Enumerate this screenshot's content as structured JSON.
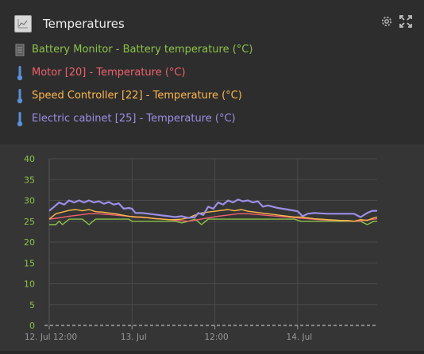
{
  "widget": {
    "title": "Temperatures",
    "icons": {
      "chart": "line-chart-icon",
      "settings": "gear-icon",
      "expand": "expand-icon"
    }
  },
  "legend": [
    {
      "device": "Battery Monitor",
      "measure": "Battery temperature (°C)",
      "color": "#8bc34a",
      "icon": "battery-icon"
    },
    {
      "device": "Motor [20]",
      "measure": "Temperature (°C)",
      "color": "#f0616c",
      "icon": "thermometer-icon"
    },
    {
      "device": "Speed Controller [22]",
      "measure": "Temperature (°C)",
      "color": "#ffb74d",
      "icon": "thermometer-icon"
    },
    {
      "device": "Electric cabinet [25]",
      "measure": "Temperature (°C)",
      "color": "#9c8fe8",
      "icon": "thermometer-icon"
    }
  ],
  "chart_data": {
    "type": "line",
    "ylim": [
      0,
      40
    ],
    "y_ticks": [
      "0",
      "5",
      "10",
      "15",
      "20",
      "25",
      "30",
      "35",
      "40"
    ],
    "x_ticks": [
      {
        "label": "12. Jul 12:00",
        "t": 0.0
      },
      {
        "label": "13. Jul",
        "t": 0.5
      },
      {
        "label": "12:00",
        "t": 1.0
      },
      {
        "label": "14. Jul",
        "t": 1.5
      }
    ],
    "x_range": [
      0.0,
      1.98
    ],
    "grid": true,
    "series": [
      {
        "name": "Battery Monitor - Battery temperature (°C)",
        "color": "#8bc34a",
        "t": [
          0.0,
          0.04,
          0.06,
          0.08,
          0.12,
          0.16,
          0.2,
          0.24,
          0.28,
          0.32,
          0.36,
          0.4,
          0.44,
          0.48,
          0.5,
          0.52,
          0.56,
          0.6,
          0.64,
          0.68,
          0.72,
          0.76,
          0.8,
          0.84,
          0.88,
          0.92,
          0.96,
          1.0,
          1.04,
          1.08,
          1.12,
          1.16,
          1.2,
          1.24,
          1.28,
          1.32,
          1.36,
          1.4,
          1.44,
          1.48,
          1.52,
          1.56,
          1.6,
          1.64,
          1.68,
          1.72,
          1.76,
          1.8,
          1.84,
          1.88,
          1.92,
          1.96,
          1.98
        ],
        "values": [
          24.2,
          24.2,
          25,
          24.2,
          25.5,
          25.5,
          25.5,
          24.2,
          25.5,
          25.5,
          25.5,
          25.5,
          25.5,
          25.5,
          25,
          25,
          25,
          25,
          25,
          25,
          25,
          25,
          24.6,
          25,
          25.5,
          24.2,
          25.5,
          25.5,
          25.5,
          25.5,
          25.5,
          25.5,
          25.5,
          25.5,
          25.5,
          25.5,
          25.5,
          25.5,
          25.5,
          25.5,
          25,
          25,
          25,
          25,
          25,
          25,
          25,
          25,
          25,
          25,
          24.2,
          25,
          25
        ]
      },
      {
        "name": "Motor [20] - Temperature (°C)",
        "color": "#f0616c",
        "t": [
          0.0,
          0.06,
          0.12,
          0.18,
          0.24,
          0.3,
          0.36,
          0.42,
          0.48,
          0.54,
          0.6,
          0.66,
          0.72,
          0.78,
          0.84,
          0.9,
          0.96,
          1.02,
          1.08,
          1.14,
          1.2,
          1.26,
          1.32,
          1.38,
          1.44,
          1.5,
          1.56,
          1.62,
          1.68,
          1.74,
          1.8,
          1.86,
          1.92,
          1.98
        ],
        "values": [
          25.5,
          25.8,
          26.2,
          26.5,
          26.8,
          26.8,
          26.6,
          26.4,
          26.2,
          26.0,
          25.8,
          25.6,
          25.4,
          25.2,
          25.0,
          25.4,
          25.8,
          26.2,
          26.5,
          26.8,
          26.8,
          26.6,
          26.4,
          26.2,
          26.0,
          25.8,
          25.6,
          25.4,
          25.3,
          25.2,
          25.1,
          25.0,
          25.3,
          25.6
        ]
      },
      {
        "name": "Speed Controller [22] - Temperature (°C)",
        "color": "#ffb74d",
        "t": [
          0.0,
          0.04,
          0.08,
          0.12,
          0.16,
          0.2,
          0.24,
          0.28,
          0.32,
          0.36,
          0.4,
          0.44,
          0.48,
          0.52,
          0.56,
          0.6,
          0.64,
          0.68,
          0.72,
          0.76,
          0.8,
          0.84,
          0.88,
          0.92,
          0.96,
          1.0,
          1.04,
          1.08,
          1.12,
          1.16,
          1.2,
          1.24,
          1.28,
          1.32,
          1.36,
          1.4,
          1.44,
          1.48,
          1.52,
          1.56,
          1.6,
          1.64,
          1.68,
          1.72,
          1.76,
          1.8,
          1.84,
          1.88,
          1.92,
          1.96,
          1.98
        ],
        "values": [
          25.5,
          26.8,
          27.2,
          27.6,
          27.8,
          27.5,
          27.8,
          27.3,
          27.2,
          27.0,
          26.8,
          26.5,
          26.2,
          26.0,
          26.0,
          25.8,
          25.6,
          25.5,
          25.4,
          25.4,
          25.5,
          25.8,
          26.5,
          27.0,
          27.2,
          27.4,
          27.6,
          27.8,
          27.5,
          27.8,
          27.4,
          27.2,
          27.0,
          26.8,
          26.6,
          26.4,
          26.2,
          26.0,
          26.0,
          25.8,
          25.6,
          25.5,
          25.4,
          25.3,
          25.2,
          25.2,
          25.0,
          25.4,
          25.2,
          25.8,
          26.0
        ]
      },
      {
        "name": "Electric cabinet [25] - Temperature (°C)",
        "color": "#9c8fe8",
        "t": [
          0.0,
          0.03,
          0.06,
          0.09,
          0.12,
          0.15,
          0.18,
          0.21,
          0.24,
          0.27,
          0.3,
          0.33,
          0.36,
          0.39,
          0.42,
          0.45,
          0.48,
          0.5,
          0.52,
          0.56,
          0.6,
          0.64,
          0.68,
          0.72,
          0.76,
          0.8,
          0.84,
          0.88,
          0.9,
          0.93,
          0.96,
          0.99,
          1.02,
          1.05,
          1.08,
          1.11,
          1.14,
          1.17,
          1.2,
          1.23,
          1.26,
          1.29,
          1.32,
          1.35,
          1.38,
          1.41,
          1.44,
          1.47,
          1.5,
          1.53,
          1.56,
          1.6,
          1.64,
          1.68,
          1.72,
          1.76,
          1.8,
          1.84,
          1.88,
          1.92,
          1.95,
          1.98
        ],
        "values": [
          27.5,
          28.5,
          29.5,
          29.0,
          30.0,
          29.5,
          30.0,
          29.5,
          30.0,
          29.5,
          29.8,
          29.2,
          29.6,
          29.0,
          29.3,
          28.0,
          28.2,
          28.0,
          27.0,
          27.0,
          26.8,
          26.6,
          26.4,
          26.2,
          26.0,
          26.2,
          25.8,
          26.0,
          27.0,
          26.5,
          28.5,
          28.0,
          29.5,
          29.0,
          30.0,
          29.5,
          30.2,
          29.8,
          30.0,
          29.5,
          29.8,
          28.5,
          28.8,
          28.5,
          28.2,
          28.0,
          27.8,
          27.6,
          27.4,
          26.2,
          26.8,
          27.0,
          26.9,
          26.8,
          26.8,
          26.8,
          26.8,
          26.8,
          26.0,
          27.0,
          27.5,
          27.5
        ]
      }
    ]
  }
}
